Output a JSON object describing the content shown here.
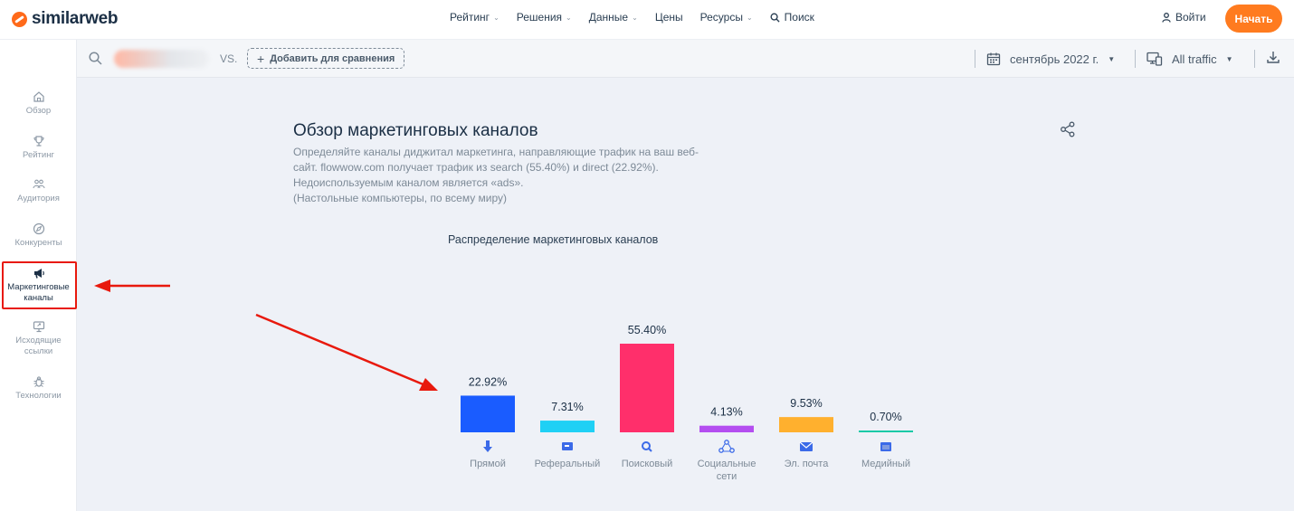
{
  "nav": {
    "logo": "similarweb",
    "menu": [
      "Рейтинг",
      "Решения",
      "Данные",
      "Цены",
      "Ресурсы"
    ],
    "menu_has_caret": [
      true,
      true,
      true,
      false,
      true
    ],
    "search": "Поиск",
    "login": "Войти",
    "start": "Начать"
  },
  "sidebar": {
    "items": [
      {
        "label": "Обзор",
        "icon": "home-icon"
      },
      {
        "label": "Рейтинг",
        "icon": "trophy-icon"
      },
      {
        "label": "Аудитория",
        "icon": "audience-icon"
      },
      {
        "label": "Конкуренты",
        "icon": "compass-icon"
      },
      {
        "label": "Маркетинговые каналы",
        "icon": "megaphone-icon"
      },
      {
        "label": "Исходящие ссылки",
        "icon": "outgoing-links-icon"
      },
      {
        "label": "Технологии",
        "icon": "bug-icon"
      }
    ]
  },
  "filterbar": {
    "vs": "VS.",
    "add_compare": "Добавить для сравнения",
    "date": "сентябрь 2022 г.",
    "traffic": "All traffic"
  },
  "overview": {
    "title": "Обзор маркетинговых каналов",
    "desc_lines": [
      "Определяйте каналы диджитал маркетинга, направляющие трафик на ваш веб-",
      "сайт. flowwow.com получает трафик из search (55.40%) и direct (22.92%).",
      "Недоиспользуемым каналом является «ads».",
      "(Настольные компьютеры, по всему миру)"
    ]
  },
  "chart_data": {
    "type": "bar",
    "title": "Распределение маркетинговых каналов",
    "categories": [
      "Прямой",
      "Реферальный",
      "Поисковый",
      "Социальные сети",
      "Эл. почта",
      "Медийный"
    ],
    "values": [
      22.92,
      7.31,
      55.4,
      4.13,
      9.53,
      0.7
    ],
    "labels": [
      "22.92%",
      "7.31%",
      "55.40%",
      "4.13%",
      "9.53%",
      "0.70%"
    ],
    "colors": [
      "#1a5cff",
      "#1fd0f5",
      "#ff2f6b",
      "#b44ef0",
      "#ffb02e",
      "#17c9a6"
    ],
    "icons": [
      "direct-icon",
      "referral-icon",
      "search-icon",
      "social-icon",
      "mail-icon",
      "display-icon"
    ],
    "ylim": [
      0,
      55.4
    ]
  },
  "colors": {
    "accent": "#ff7b1f",
    "annotation": "#e8190d"
  }
}
